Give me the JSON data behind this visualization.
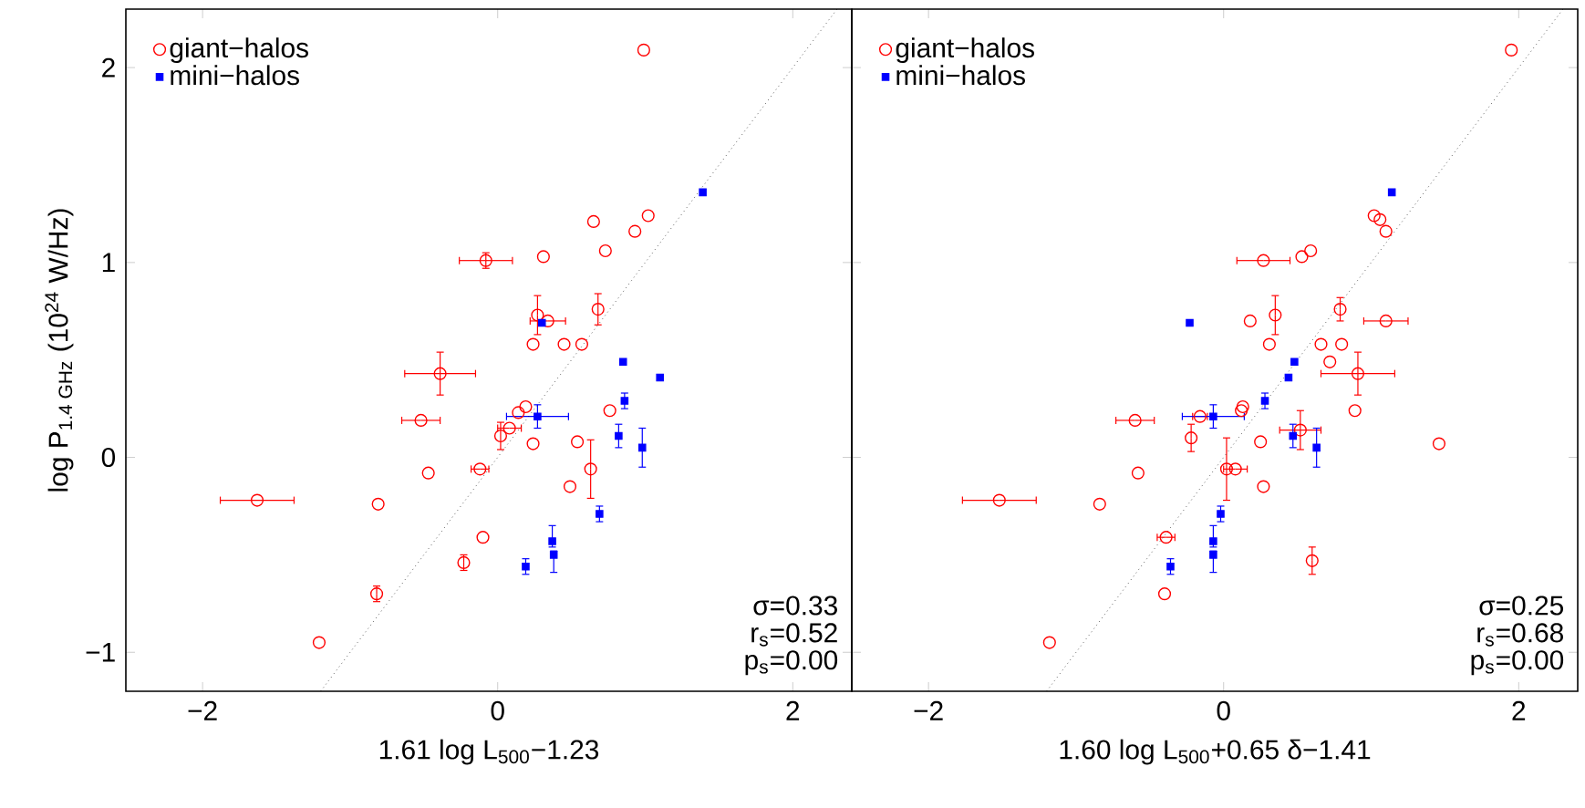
{
  "chart_data": [
    {
      "type": "scatter",
      "xlabel": "1.61 log L$_{500}$−1.23",
      "ylabel": "log P$_{1.4 GHz}$ (10$^{24}$ W/Hz)",
      "xlim": [
        -2.52,
        2.4
      ],
      "ylim": [
        -1.2,
        2.3
      ],
      "xticks": [
        {
          "value": -2,
          "label": "−2"
        },
        0,
        2
      ],
      "yticks": [
        {
          "value": -1,
          "label": "−1"
        },
        0,
        1,
        2
      ],
      "legend": "top left",
      "annotations": [
        "σ=0.33",
        "r$_{s}$=0.52",
        "p$_{s}$=0.00"
      ],
      "series": [
        {
          "name": "giant−halos",
          "color": "#ff0000",
          "marker": "circle",
          "x": [
            0.99,
            1.02,
            0.93,
            0.65,
            0.73,
            0.31,
            -0.08,
            0.68,
            0.27,
            0.34,
            0.24,
            0.45,
            0.57,
            -0.39,
            -0.52,
            0.19,
            0.14,
            0.08,
            0.02,
            0.24,
            0.54,
            0.76,
            0.63,
            0.49,
            -0.12,
            -0.47,
            -0.81,
            -1.63,
            -0.1,
            -0.23,
            -0.82,
            -1.21
          ],
          "values": [
            2.09,
            1.24,
            1.16,
            1.21,
            1.06,
            1.03,
            1.01,
            0.76,
            0.73,
            0.7,
            0.58,
            0.58,
            0.58,
            0.43,
            0.19,
            0.26,
            0.23,
            0.15,
            0.11,
            0.07,
            0.08,
            0.24,
            -0.06,
            -0.15,
            -0.06,
            -0.08,
            -0.24,
            -0.22,
            -0.41,
            -0.54,
            -0.7,
            -0.95
          ],
          "errors": [
            null,
            null,
            null,
            null,
            null,
            null,
            0.04,
            0.08,
            0.1,
            null,
            null,
            null,
            null,
            0.11,
            null,
            null,
            null,
            null,
            0.07,
            null,
            null,
            null,
            0.15,
            null,
            null,
            null,
            null,
            null,
            null,
            0.04,
            0.04,
            null
          ],
          "xerrors": [
            null,
            null,
            null,
            null,
            null,
            null,
            0.18,
            null,
            null,
            0.12,
            null,
            null,
            null,
            0.24,
            0.13,
            null,
            null,
            0.08,
            null,
            null,
            null,
            null,
            null,
            null,
            0.06,
            null,
            null,
            0.25,
            null,
            null,
            null,
            null
          ]
        },
        {
          "name": "mini−halos",
          "color": "#0000ff",
          "marker": "square",
          "x": [
            1.39,
            0.3,
            0.85,
            1.1,
            0.86,
            0.27,
            0.82,
            0.98,
            0.69,
            0.37,
            0.38,
            0.19
          ],
          "values": [
            1.36,
            0.69,
            0.49,
            0.41,
            0.29,
            0.21,
            0.11,
            0.05,
            -0.29,
            -0.43,
            -0.5,
            -0.56
          ],
          "errors": [
            null,
            null,
            null,
            null,
            0.04,
            0.06,
            0.06,
            0.1,
            0.04,
            [
              -0.46,
              -0.35
            ],
            [
              -0.59,
              -0.48
            ],
            0.04
          ],
          "xerrors": [
            null,
            null,
            null,
            null,
            null,
            0.21,
            null,
            null,
            null,
            null,
            null,
            null
          ]
        },
        {
          "type": "line",
          "color": "#000000",
          "line_style": "dotted",
          "x": [
            -1.2,
            2.3
          ],
          "values": [
            -1.2,
            2.3
          ]
        }
      ]
    },
    {
      "type": "scatter",
      "xlabel": "1.60 log L$_{500}$+0.65 δ−1.41",
      "xlim": [
        -2.52,
        2.4
      ],
      "ylim": [
        -1.2,
        2.3
      ],
      "xticks": [
        {
          "value": -2,
          "label": "−2"
        },
        0,
        2
      ],
      "yticks": [
        -1,
        0,
        1,
        2
      ],
      "tick_labels": "x",
      "legend": "top left",
      "annotations": [
        "σ=0.25",
        "r$_{s}$=0.68",
        "p$_{s}$=0.00"
      ],
      "series": [
        {
          "name": "giant−halos",
          "color": "#ff0000",
          "marker": "circle",
          "x": [
            1.95,
            1.02,
            1.06,
            1.1,
            0.59,
            0.53,
            0.27,
            0.79,
            1.1,
            0.18,
            0.35,
            0.31,
            0.66,
            0.8,
            0.72,
            0.91,
            0.89,
            -0.6,
            -0.16,
            0.13,
            0.12,
            -0.22,
            0.25,
            0.52,
            1.46,
            0.02,
            0.08,
            0.27,
            -0.58,
            -0.84,
            -1.52,
            -0.39,
            0.6,
            -0.4,
            -1.18
          ],
          "values": [
            2.09,
            1.24,
            1.22,
            1.16,
            1.06,
            1.03,
            1.01,
            0.76,
            0.7,
            0.7,
            0.73,
            0.58,
            0.58,
            0.58,
            0.49,
            0.43,
            0.24,
            0.19,
            0.21,
            0.26,
            0.24,
            0.1,
            0.08,
            0.14,
            0.07,
            -0.06,
            -0.06,
            -0.15,
            -0.08,
            -0.24,
            -0.22,
            -0.41,
            -0.53,
            -0.7,
            -0.95
          ],
          "errors": [
            null,
            null,
            null,
            null,
            null,
            null,
            null,
            0.06,
            null,
            null,
            0.1,
            null,
            null,
            null,
            null,
            0.11,
            null,
            null,
            null,
            null,
            null,
            0.07,
            null,
            0.1,
            null,
            0.16,
            null,
            null,
            null,
            null,
            null,
            null,
            0.07,
            null,
            null
          ],
          "xerrors": [
            null,
            null,
            null,
            null,
            null,
            null,
            0.18,
            null,
            0.15,
            null,
            null,
            null,
            null,
            null,
            null,
            0.25,
            null,
            0.13,
            0.05,
            null,
            null,
            null,
            null,
            0.14,
            null,
            null,
            0.08,
            null,
            null,
            null,
            0.25,
            0.06,
            null,
            null,
            null
          ]
        },
        {
          "name": "mini−halos",
          "color": "#0000ff",
          "marker": "square",
          "x": [
            1.14,
            -0.23,
            0.48,
            0.44,
            0.28,
            -0.07,
            0.47,
            0.63,
            -0.02,
            -0.07,
            -0.07,
            -0.36
          ],
          "values": [
            1.36,
            0.69,
            0.49,
            0.41,
            0.29,
            0.21,
            0.11,
            0.05,
            -0.29,
            -0.43,
            -0.5,
            -0.56
          ],
          "errors": [
            null,
            null,
            null,
            null,
            0.04,
            0.06,
            0.06,
            0.1,
            0.04,
            [
              -0.46,
              -0.35
            ],
            [
              -0.59,
              -0.48
            ],
            0.04
          ],
          "xerrors": [
            null,
            null,
            null,
            null,
            null,
            0.21,
            null,
            null,
            null,
            null,
            null,
            null
          ]
        },
        {
          "type": "line",
          "color": "#000000",
          "line_style": "dotted",
          "x": [
            -1.2,
            2.3
          ],
          "values": [
            -1.2,
            2.3
          ]
        }
      ]
    }
  ]
}
